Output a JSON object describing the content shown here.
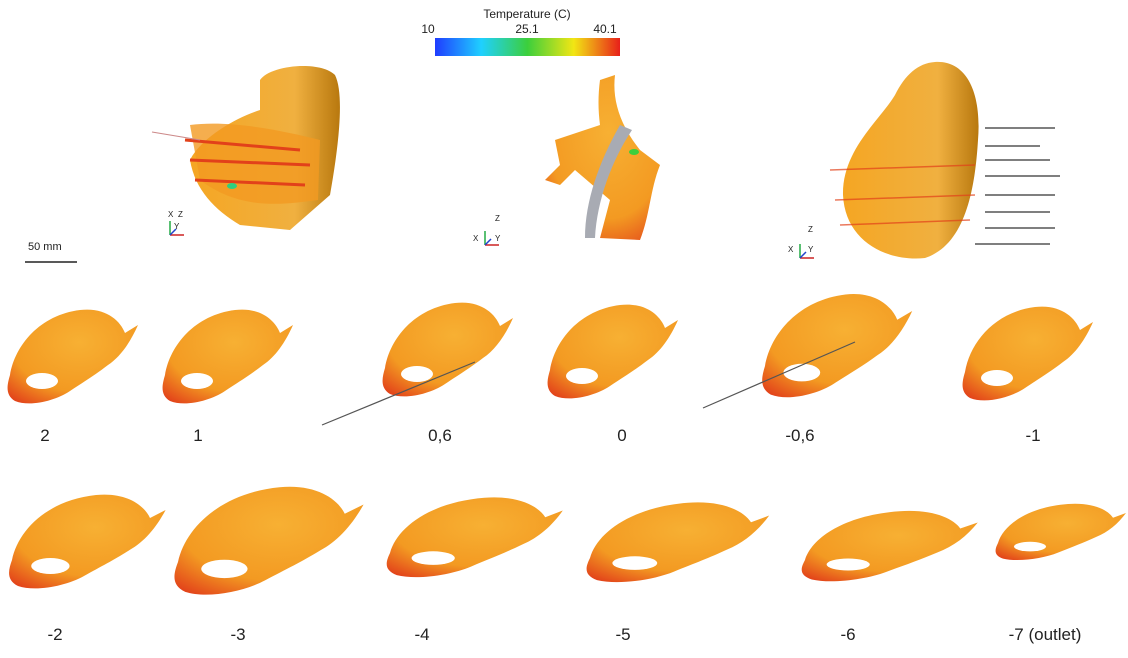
{
  "colorbar": {
    "title": "Temperature (C)",
    "ticks": [
      "10",
      "25.1",
      "40.1"
    ]
  },
  "scale_bar": "50 mm",
  "axes": {
    "x": "X",
    "y": "Y",
    "z": "Z"
  },
  "sections": {
    "row1": [
      "2",
      "1",
      "0,6",
      "0",
      "-0,6",
      "-1"
    ],
    "row2": [
      "-2",
      "-3",
      "-4",
      "-5",
      "-6",
      "-7 (outlet)"
    ]
  }
}
